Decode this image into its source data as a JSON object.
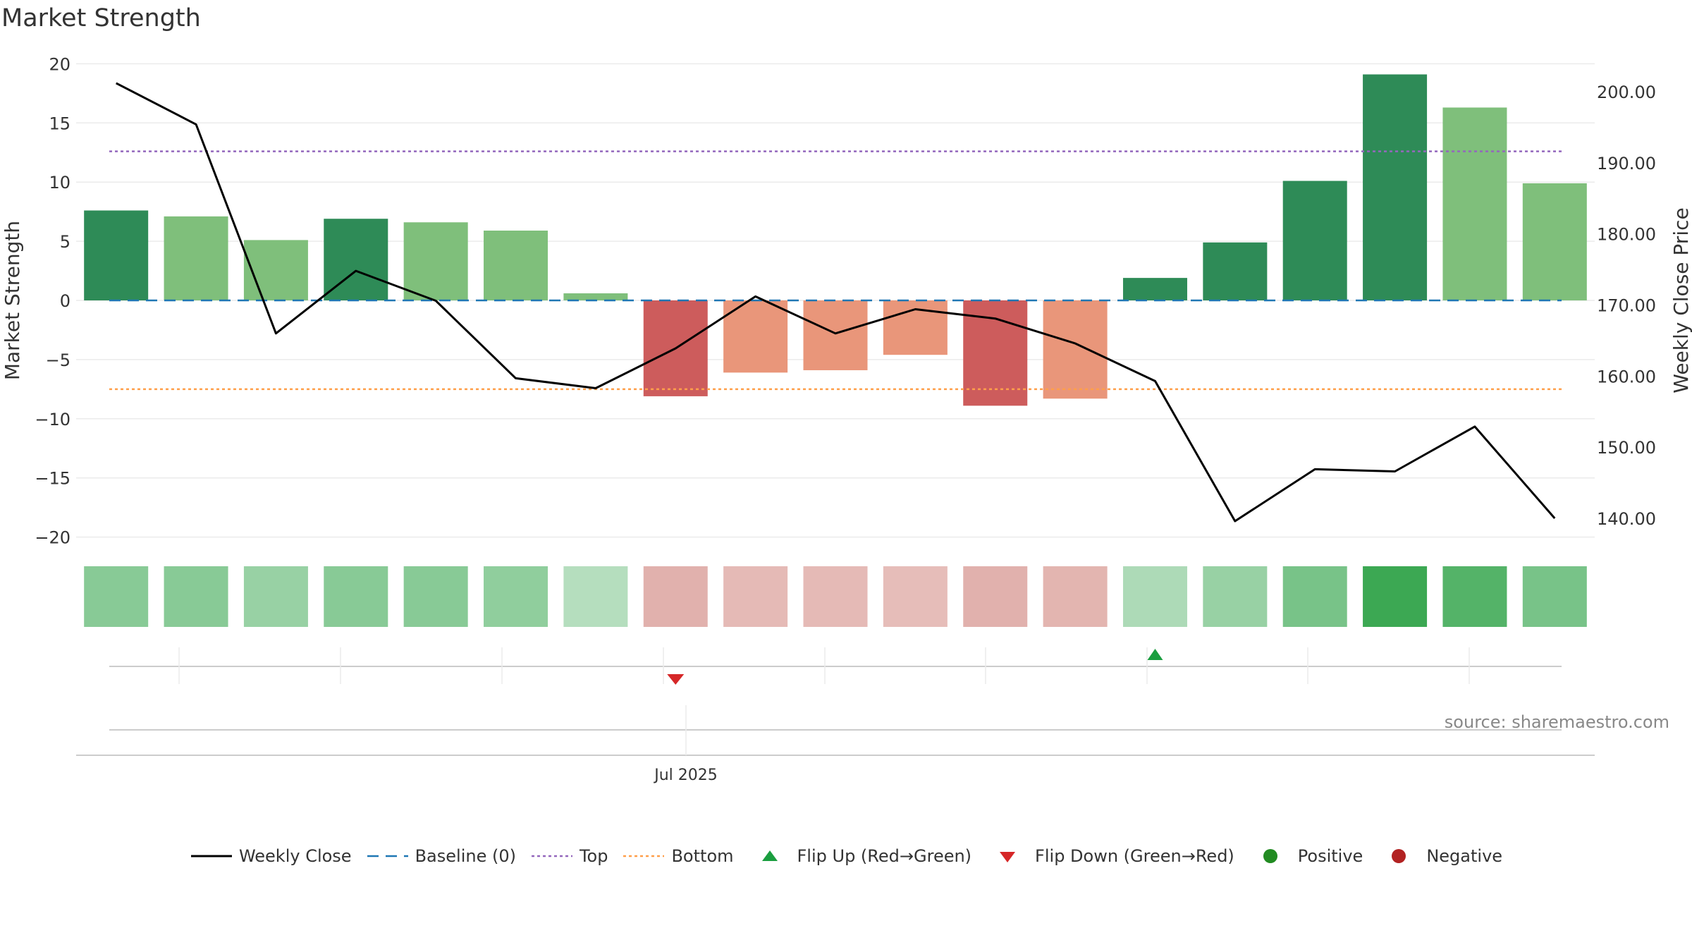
{
  "title": "Market Strength",
  "source": "source: sharemaestro.com",
  "colors": {
    "strong_green": "#2e8b57",
    "light_green": "#7fbf7b",
    "strong_red": "#cd5c5c",
    "light_red": "#e9967a",
    "baseline": "#1f77b4",
    "top": "#9467bd",
    "bottom": "#ff9f4a",
    "close": "#000000",
    "flip_up": "#1a9e3f",
    "flip_down": "#d62728",
    "positive": "#228b22",
    "negative": "#b22222"
  },
  "legend": [
    {
      "key": "close",
      "label": "Weekly Close"
    },
    {
      "key": "baseline",
      "label": "Baseline (0)"
    },
    {
      "key": "top",
      "label": "Top"
    },
    {
      "key": "bottom",
      "label": "Bottom"
    },
    {
      "key": "flip_up",
      "label": "Flip Up (Red→Green)"
    },
    {
      "key": "flip_down",
      "label": "Flip Down (Green→Red)"
    },
    {
      "key": "positive",
      "label": "Positive"
    },
    {
      "key": "negative",
      "label": "Negative"
    }
  ],
  "chart_data": {
    "type": "bar",
    "title": "Market Strength",
    "ylabel": "Market Strength",
    "y2label": "Weekly Close Price",
    "ylim": [
      -20,
      20
    ],
    "y2lim": [
      133,
      203
    ],
    "yticks": [
      20,
      15,
      10,
      5,
      0,
      -5,
      -10,
      -15,
      -20
    ],
    "ytick_labels": [
      "20",
      "15",
      "10",
      "5",
      "0",
      "−5",
      "−10",
      "−15",
      "−20"
    ],
    "y2ticks": [
      200,
      190,
      180,
      170,
      160,
      150,
      140
    ],
    "y2tick_labels": [
      "200.00",
      "190.00",
      "180.00",
      "170.00",
      "160.00",
      "150.00",
      "140.00"
    ],
    "xtick_label": "Jul 2025",
    "xtick_index": 7.13,
    "strength": [
      7.6,
      7.1,
      5.1,
      6.9,
      6.6,
      5.9,
      0.6,
      -8.1,
      -6.1,
      -5.9,
      -4.6,
      -8.9,
      -8.3,
      1.9,
      4.9,
      10.1,
      19.1,
      16.3,
      9.9
    ],
    "strength_class": [
      "strong",
      "light",
      "light",
      "strong",
      "light",
      "light",
      "light",
      "strong",
      "light",
      "light",
      "light",
      "strong",
      "light",
      "strong",
      "strong",
      "strong",
      "strong",
      "light",
      "light"
    ],
    "weekly_close": [
      201.2,
      195.4,
      166.0,
      174.8,
      170.6,
      159.7,
      158.3,
      163.9,
      171.2,
      166.0,
      169.4,
      168.1,
      164.6,
      159.3,
      139.6,
      146.9,
      146.6,
      152.9,
      140.0
    ],
    "heat_intensity": [
      0.5,
      0.5,
      0.4,
      0.5,
      0.5,
      0.45,
      0.2,
      0.45,
      0.35,
      0.35,
      0.3,
      0.45,
      0.4,
      0.25,
      0.4,
      0.6,
      1.0,
      0.85,
      0.6
    ],
    "baseline": 0,
    "top": 12.6,
    "bottom": -7.5,
    "flip_up_index": 13,
    "flip_down_index": 7
  }
}
